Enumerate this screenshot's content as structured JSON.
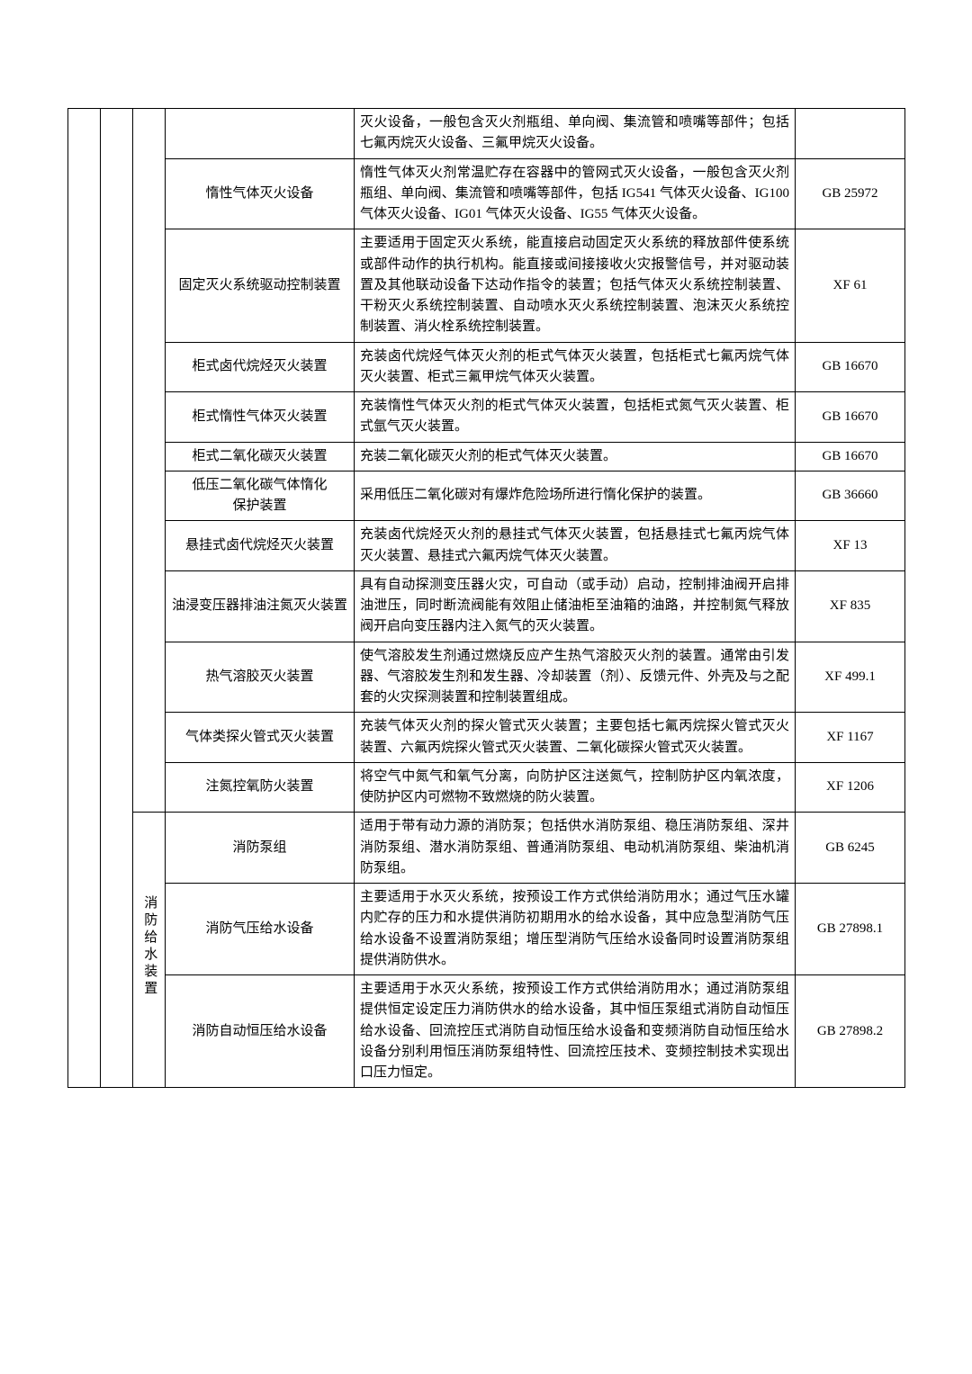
{
  "category_label": "消防给水装置",
  "rows": [
    {
      "name": "",
      "name_lines": [],
      "desc": "灭火设备，一般包含灭火剂瓶组、单向阀、集流管和喷嘴等部件；包括七氟丙烷灭火设备、三氟甲烷灭火设备。",
      "code": ""
    },
    {
      "name": "惰性气体灭火设备",
      "desc": "惰性气体灭火剂常温贮存在容器中的管网式灭火设备，一般包含灭火剂瓶组、单向阀、集流管和喷嘴等部件，包括 IG541 气体灭火设备、IG100 气体灭火设备、IG01 气体灭火设备、IG55 气体灭火设备。",
      "code": "GB 25972"
    },
    {
      "name": "固定灭火系统驱动控制装置",
      "desc": "主要适用于固定灭火系统，能直接启动固定灭火系统的释放部件使系统或部件动作的执行机构。能直接或间接接收火灾报警信号，并对驱动装置及其他联动设备下达动作指令的装置；包括气体灭火系统控制装置、干粉灭火系统控制装置、自动喷水灭火系统控制装置、泡沫灭火系统控制装置、消火栓系统控制装置。",
      "code": "XF 61"
    },
    {
      "name": "柜式卤代烷烃灭火装置",
      "desc": "充装卤代烷烃气体灭火剂的柜式气体灭火装置，包括柜式七氟丙烷气体灭火装置、柜式三氟甲烷气体灭火装置。",
      "code": "GB 16670"
    },
    {
      "name": "柜式惰性气体灭火装置",
      "desc": "充装惰性气体灭火剂的柜式气体灭火装置，包括柜式氮气灭火装置、柜式氩气灭火装置。",
      "code": "GB 16670"
    },
    {
      "name": "柜式二氧化碳灭火装置",
      "desc": "充装二氧化碳灭火剂的柜式气体灭火装置。",
      "code": "GB 16670"
    },
    {
      "name_lines": [
        "低压二氧化碳气体惰化",
        "保护装置"
      ],
      "desc": "采用低压二氧化碳对有爆炸危险场所进行惰化保护的装置。",
      "code": "GB 36660"
    },
    {
      "name": "悬挂式卤代烷烃灭火装置",
      "desc": "充装卤代烷烃灭火剂的悬挂式气体灭火装置，包括悬挂式七氟丙烷气体灭火装置、悬挂式六氟丙烷气体灭火装置。",
      "code": "XF 13"
    },
    {
      "name": "油浸变压器排油注氮灭火装置",
      "desc": "具有自动探测变压器火灾，可自动（或手动）启动，控制排油阀开启排油泄压，同时断流阀能有效阻止储油柜至油箱的油路，并控制氮气释放阀开启向变压器内注入氮气的灭火装置。",
      "code": "XF 835"
    },
    {
      "name": "热气溶胶灭火装置",
      "desc": "使气溶胶发生剂通过燃烧反应产生热气溶胶灭火剂的装置。通常由引发器、气溶胶发生剂和发生器、冷却装置（剂）、反馈元件、外壳及与之配套的火灾探测装置和控制装置组成。",
      "code": "XF 499.1"
    },
    {
      "name": "气体类探火管式灭火装置",
      "desc": "充装气体灭火剂的探火管式灭火装置；主要包括七氟丙烷探火管式灭火装置、六氟丙烷探火管式灭火装置、二氧化碳探火管式灭火装置。",
      "code": "XF 1167"
    },
    {
      "name": "注氮控氧防火装置",
      "desc": "将空气中氮气和氧气分离，向防护区注送氮气，控制防护区内氧浓度，使防护区内可燃物不致燃烧的防火装置。",
      "code": "XF 1206"
    },
    {
      "name": "消防泵组",
      "desc": "适用于带有动力源的消防泵；包括供水消防泵组、稳压消防泵组、深井消防泵组、潜水消防泵组、普通消防泵组、电动机消防泵组、柴油机消防泵组。",
      "code": "GB 6245"
    },
    {
      "name": "消防气压给水设备",
      "desc": "主要适用于水灭火系统，按预设工作方式供给消防用水；通过气压水罐内贮存的压力和水提供消防初期用水的给水设备，其中应急型消防气压给水设备不设置消防泵组；增压型消防气压给水设备同时设置消防泵组提供消防供水。",
      "code": "GB 27898.1"
    },
    {
      "name": "消防自动恒压给水设备",
      "desc": "主要适用于水灭火系统，按预设工作方式供给消防用水；通过消防泵组提供恒定设定压力消防供水的给水设备，其中恒压泵组式消防自动恒压给水设备、回流控压式消防自动恒压给水设备和变频消防自动恒压给水设备分别利用恒压消防泵组特性、回流控压技术、变频控制技术实现出口压力恒定。",
      "code": "GB 27898.2"
    }
  ]
}
